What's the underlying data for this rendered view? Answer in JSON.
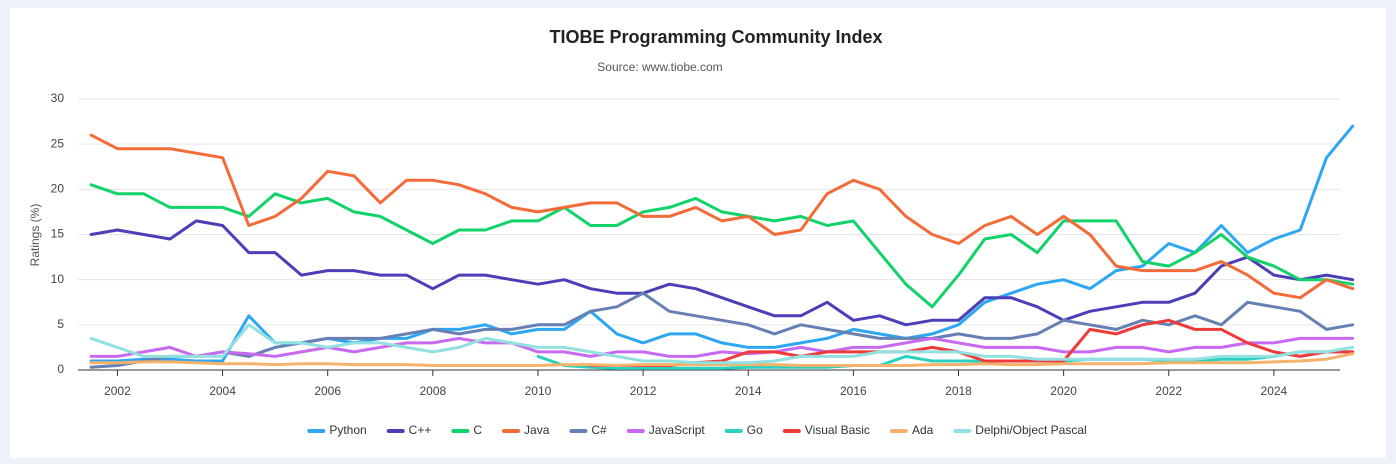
{
  "chart_data": {
    "type": "line",
    "title": "TIOBE Programming Community Index",
    "subtitle": "Source: www.tiobe.com",
    "y_label": "Ratings (%)",
    "xlim": [
      2001.25,
      2025.6
    ],
    "xticks": [
      2002,
      2004,
      2006,
      2008,
      2010,
      2012,
      2014,
      2016,
      2018,
      2020,
      2022,
      2024
    ],
    "ylim": [
      0,
      30
    ],
    "yticks": [
      0,
      5,
      10,
      15,
      20,
      25,
      30
    ],
    "grid": true,
    "legend": "bottom",
    "x": [
      2001.5,
      2002,
      2002.5,
      2003,
      2003.5,
      2004,
      2004.5,
      2005,
      2005.5,
      2006,
      2006.5,
      2007,
      2007.5,
      2008,
      2008.5,
      2009,
      2009.5,
      2010,
      2010.5,
      2011,
      2011.5,
      2012,
      2012.5,
      2013,
      2013.5,
      2014,
      2014.5,
      2015,
      2015.5,
      2016,
      2016.5,
      2017,
      2017.5,
      2018,
      2018.5,
      2019,
      2019.5,
      2020,
      2020.5,
      2021,
      2021.5,
      2022,
      2022.5,
      2023,
      2023.5,
      2024,
      2024.5,
      2025,
      2025.5
    ],
    "series": [
      {
        "name": "Python",
        "color": "#2ea7f2",
        "values": [
          1,
          1,
          1.2,
          1.2,
          1,
          1,
          6,
          3,
          3,
          3.5,
          3,
          3.5,
          3.5,
          4.5,
          4.5,
          5,
          4,
          4.5,
          4.5,
          6.5,
          4,
          3,
          4,
          4,
          3,
          2.5,
          2.5,
          3,
          3.5,
          4.5,
          4,
          3.5,
          4,
          5,
          7.5,
          8.5,
          9.5,
          10,
          9,
          11,
          11.5,
          14,
          13,
          16,
          13,
          14.5,
          15.5,
          23.5,
          27
        ]
      },
      {
        "name": "C++",
        "color": "#4b3fb8",
        "values": [
          15,
          15.5,
          15,
          14.5,
          16.5,
          16,
          13,
          13,
          10.5,
          11,
          11,
          10.5,
          10.5,
          9,
          10.5,
          10.5,
          10,
          9.5,
          10,
          9,
          8.5,
          8.5,
          9.5,
          9,
          8,
          7,
          6,
          6,
          7.5,
          5.5,
          6,
          5,
          5.5,
          5.5,
          8,
          8,
          7,
          5.5,
          6.5,
          7,
          7.5,
          7.5,
          8.5,
          11.5,
          12.5,
          10.5,
          10,
          10.5,
          10
        ]
      },
      {
        "name": "C",
        "color": "#12d36a",
        "values": [
          20.5,
          19.5,
          19.5,
          18,
          18,
          18,
          17,
          19.5,
          18.5,
          19,
          17.5,
          17,
          15.5,
          14,
          15.5,
          15.5,
          16.5,
          16.5,
          18,
          16,
          16,
          17.5,
          18,
          19,
          17.5,
          17,
          16.5,
          17,
          16,
          16.5,
          13,
          9.5,
          7,
          10.5,
          14.5,
          15,
          13,
          16.5,
          16.5,
          16.5,
          12,
          11.5,
          13,
          15,
          12.5,
          11.5,
          10,
          10,
          9.5
        ]
      },
      {
        "name": "Java",
        "color": "#f26b38",
        "values": [
          26,
          24.5,
          24.5,
          24.5,
          24,
          23.5,
          16,
          17,
          19,
          22,
          21.5,
          18.5,
          21,
          21,
          20.5,
          19.5,
          18,
          17.5,
          18,
          18.5,
          18.5,
          17,
          17,
          18,
          16.5,
          17,
          15,
          15.5,
          19.5,
          21,
          20,
          17,
          15,
          14,
          16,
          17,
          15,
          17,
          15,
          11.5,
          11,
          11,
          11,
          12,
          10.5,
          8.5,
          8,
          10,
          9
        ]
      },
      {
        "name": "C#",
        "color": "#6680b3",
        "values": [
          0.3,
          0.5,
          1,
          1.5,
          1.5,
          2,
          1.5,
          2.5,
          3,
          3.5,
          3.5,
          3.5,
          4,
          4.5,
          4,
          4.5,
          4.5,
          5,
          5,
          6.5,
          7,
          8.5,
          6.5,
          6,
          5.5,
          5,
          4,
          5,
          4.5,
          4,
          3.5,
          3.5,
          3.5,
          4,
          3.5,
          3.5,
          4,
          5.5,
          5,
          4.5,
          5.5,
          5,
          6,
          5,
          7.5,
          7,
          6.5,
          4.5,
          5
        ]
      },
      {
        "name": "JavaScript",
        "color": "#c86af0",
        "values": [
          1.5,
          1.5,
          2,
          2.5,
          1.5,
          2,
          1.8,
          1.5,
          2,
          2.5,
          2,
          2.5,
          3,
          3,
          3.5,
          3,
          3,
          2,
          2,
          1.5,
          2,
          2,
          1.5,
          1.5,
          2,
          1.8,
          2,
          2.5,
          2,
          2.5,
          2.5,
          3,
          3.5,
          3,
          2.5,
          2.5,
          2.5,
          2,
          2,
          2.5,
          2.5,
          2,
          2.5,
          2.5,
          3,
          3,
          3.5,
          3.5,
          3.5
        ]
      },
      {
        "name": "Go",
        "color": "#2bd1c0",
        "values": [
          null,
          null,
          null,
          null,
          null,
          null,
          null,
          null,
          null,
          null,
          null,
          null,
          null,
          null,
          null,
          null,
          null,
          1.5,
          0.5,
          0.3,
          0.2,
          0.2,
          0.2,
          0.2,
          0.2,
          0.3,
          0.3,
          0.3,
          0.3,
          0.5,
          0.5,
          1.5,
          1,
          1,
          1,
          1,
          1,
          1,
          1.2,
          1.2,
          1.2,
          1,
          1,
          1.2,
          1.2,
          1.5,
          2,
          2,
          2
        ]
      },
      {
        "name": "Visual Basic",
        "color": "#ee3a3a",
        "values": [
          null,
          null,
          null,
          null,
          null,
          null,
          null,
          null,
          null,
          null,
          null,
          null,
          null,
          null,
          null,
          null,
          null,
          null,
          null,
          0.5,
          0.5,
          0.5,
          0.5,
          0.8,
          1,
          2,
          2,
          1.5,
          2,
          2,
          2,
          2,
          2.5,
          2,
          1,
          1,
          1,
          1,
          4.5,
          4,
          5,
          5.5,
          4.5,
          4.5,
          3,
          2,
          1.5,
          2,
          2
        ]
      },
      {
        "name": "Ada",
        "color": "#f5b26b",
        "values": [
          0.8,
          0.8,
          0.9,
          0.9,
          0.8,
          0.7,
          0.7,
          0.6,
          0.7,
          0.7,
          0.6,
          0.6,
          0.6,
          0.5,
          0.5,
          0.5,
          0.5,
          0.5,
          0.6,
          0.6,
          0.5,
          0.6,
          0.6,
          0.6,
          0.6,
          0.6,
          0.6,
          0.5,
          0.5,
          0.5,
          0.5,
          0.5,
          0.6,
          0.6,
          0.7,
          0.6,
          0.6,
          0.7,
          0.7,
          0.7,
          0.7,
          0.8,
          0.8,
          0.8,
          0.8,
          0.9,
          1,
          1.2,
          1.8
        ]
      },
      {
        "name": "Delphi/Object Pascal",
        "color": "#93e0e0",
        "values": [
          3.5,
          2.5,
          1.5,
          1.5,
          1.5,
          1.5,
          5,
          3,
          3,
          2.5,
          3,
          3,
          2.5,
          2,
          2.5,
          3.5,
          3,
          2.5,
          2.5,
          2,
          1.5,
          1,
          1,
          0.8,
          0.8,
          0.8,
          1,
          1.5,
          1.5,
          1.5,
          2,
          2,
          2,
          2,
          1.5,
          1.5,
          1.2,
          1.2,
          1.2,
          1.2,
          1.2,
          1.2,
          1.2,
          1.5,
          1.5,
          1.5,
          2,
          2,
          2.5
        ]
      }
    ]
  }
}
